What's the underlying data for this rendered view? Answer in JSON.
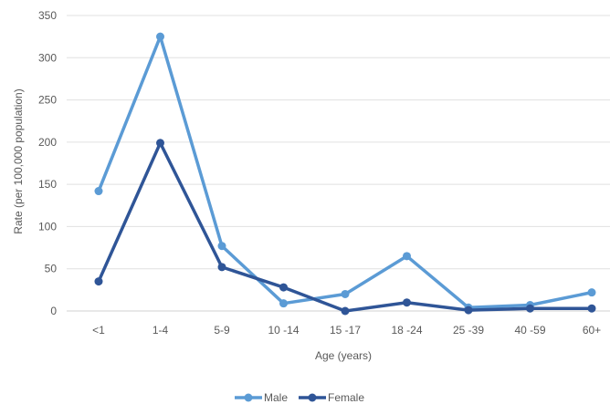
{
  "chart_data": {
    "type": "line",
    "title": "",
    "xlabel": "Age (years)",
    "ylabel": "Rate (per 100,000 population)",
    "categories": [
      "<1",
      "1-4",
      "5-9",
      "10 -14",
      "15 -17",
      "18 -24",
      "25 -39",
      "40 -59",
      "60+"
    ],
    "ylim": [
      0,
      350
    ],
    "yticks": [
      0,
      50,
      100,
      150,
      200,
      250,
      300,
      350
    ],
    "grid": true,
    "legend_position": "bottom",
    "series": [
      {
        "name": "Male",
        "color": "#5b9bd5",
        "values": [
          142,
          325,
          77,
          9,
          20,
          65,
          4,
          7,
          22
        ]
      },
      {
        "name": "Female",
        "color": "#2f5597",
        "values": [
          35,
          199,
          52,
          28,
          0,
          10,
          1,
          3,
          3
        ]
      }
    ]
  }
}
